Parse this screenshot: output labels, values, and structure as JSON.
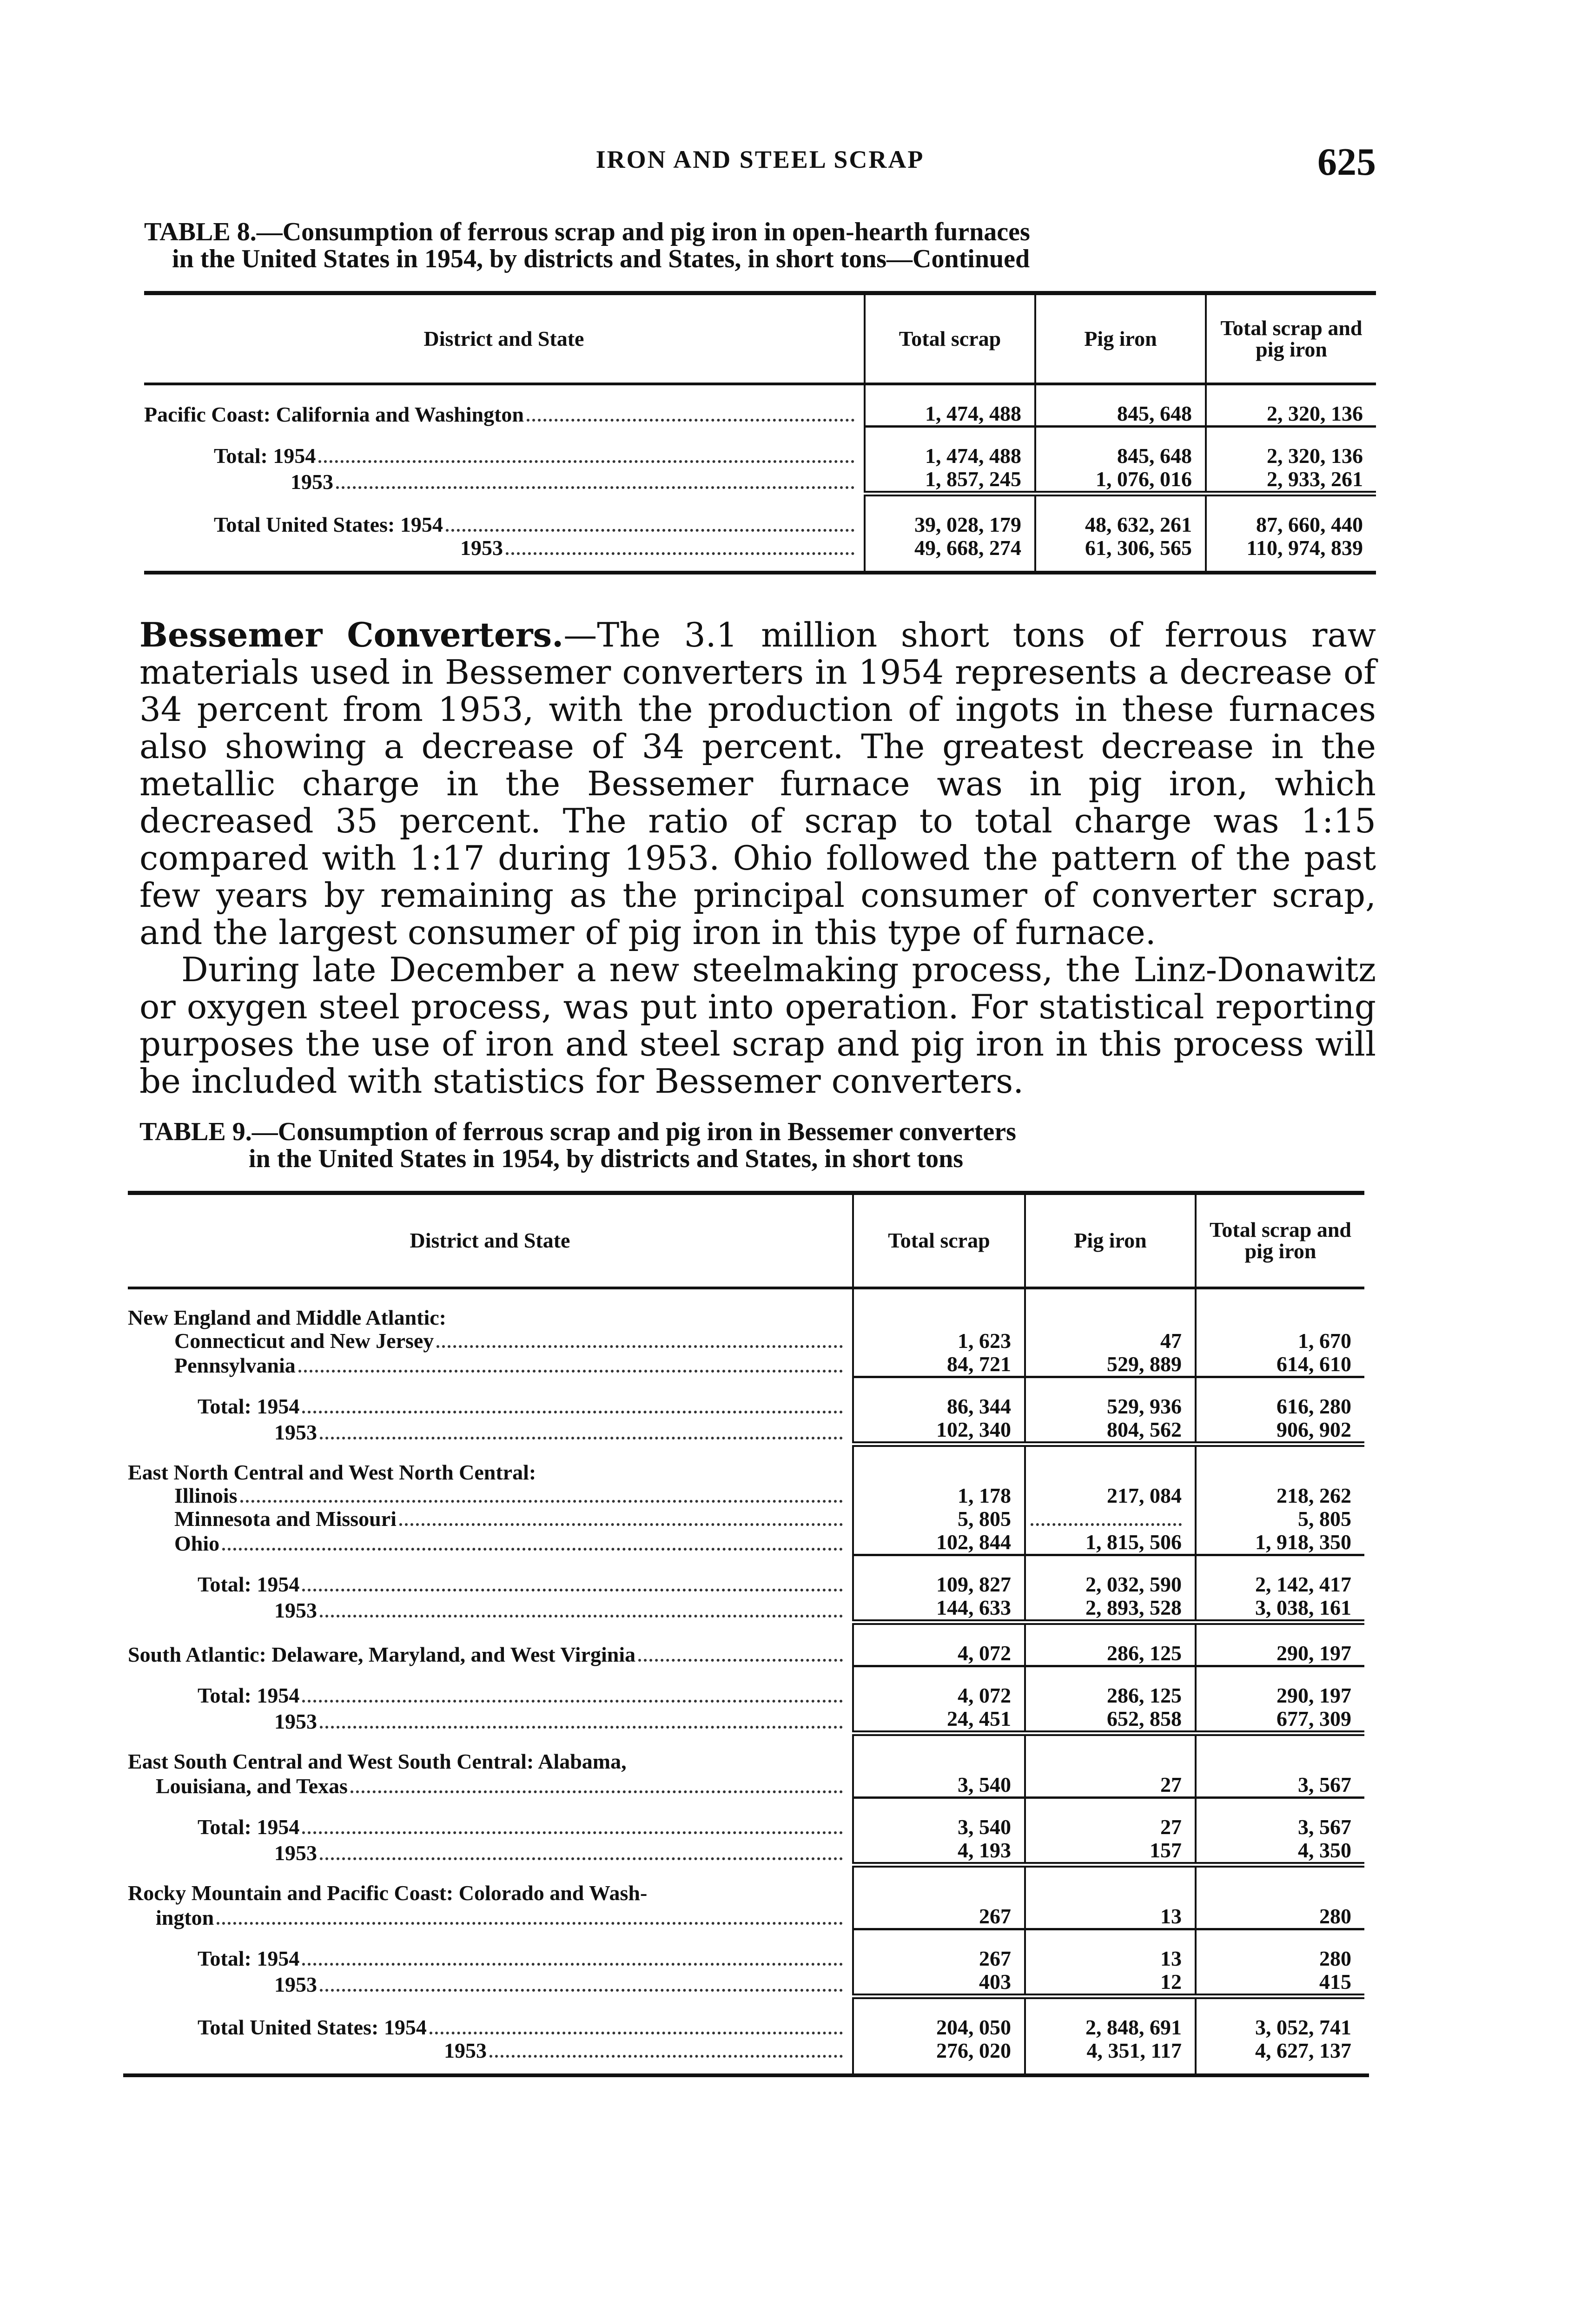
{
  "header": {
    "running_title": "IRON AND STEEL SCRAP",
    "page_number": "625"
  },
  "columns": [
    "District and State",
    "Total scrap",
    "Pig iron",
    "Total scrap and pig iron"
  ],
  "table8": {
    "title_line1": "TABLE 8.—Consumption of ferrous scrap and pig iron in open-hearth furnaces",
    "title_line2": "in the United States in 1954, by districts and States, in short tons—Continued",
    "rows": [
      {
        "label": "Pacific Coast: California and Washington",
        "indent": 0,
        "values": [
          "1, 474, 488",
          "845, 648",
          "2, 320, 136"
        ],
        "style": "gapTop"
      },
      {
        "label": "Total: 1954",
        "indent": 1,
        "values": [
          "1, 474, 488",
          "845, 648",
          "2, 320, 136"
        ],
        "style": "single"
      },
      {
        "label": "1953",
        "indent": 2,
        "values": [
          "1, 857, 245",
          "1, 076, 016",
          "2, 933, 261"
        ]
      },
      {
        "label": "Total United States: 1954",
        "indent": 1,
        "values": [
          "39, 028, 179",
          "48, 632, 261",
          "87, 660, 440"
        ],
        "style": "double"
      },
      {
        "label": "1953",
        "indent": 3,
        "values": [
          "49, 668, 274",
          "61, 306, 565",
          "110, 974, 839"
        ],
        "style": "last"
      }
    ]
  },
  "paragraph": {
    "lead_in": "Bessemer Converters.",
    "p1": "—The 3.1 million short tons of ferrous raw materials used in Bessemer converters in 1954 represents a decrease of 34 percent from 1953, with the production of ingots in these furnaces also showing a decrease of 34 percent. The greatest decrease in the metallic charge in the Bessemer furnace was in pig iron, which decreased 35 percent. The ratio of scrap to total charge was 1:15 compared with 1:17 during 1953. Ohio followed the pattern of the past few years by remaining as the principal consumer of converter scrap, and the largest consumer of pig iron in this type of furnace.",
    "p2": "During late December a new steelmaking process, the Linz-Donawitz or oxygen steel process, was put into operation. For statistical reporting purposes the use of iron and steel scrap and pig iron in this process will be included with statistics for Bessemer converters."
  },
  "table9": {
    "title_line1": "TABLE 9.—Consumption of ferrous scrap and pig iron in Bessemer converters",
    "title_line2": "in the United States in 1954, by districts and States, in short tons",
    "rows": [
      {
        "label": "New England and Middle Atlantic:",
        "indent": 0,
        "values": null,
        "style": "gapTop"
      },
      {
        "label": "Connecticut and New Jersey",
        "indent": 4,
        "values": [
          "1, 623",
          "47",
          "1, 670"
        ]
      },
      {
        "label": "Pennsylvania",
        "indent": 4,
        "values": [
          "84, 721",
          "529, 889",
          "614, 610"
        ]
      },
      {
        "label": "Total: 1954",
        "indent": 1,
        "values": [
          "86, 344",
          "529, 936",
          "616, 280"
        ],
        "style": "single"
      },
      {
        "label": "1953",
        "indent": 2,
        "values": [
          "102, 340",
          "804, 562",
          "906, 902"
        ]
      },
      {
        "label": "East North Central and West North Central:",
        "indent": 0,
        "values": null,
        "style": "double"
      },
      {
        "label": "Illinois",
        "indent": 4,
        "values": [
          "1, 178",
          "217, 084",
          "218, 262"
        ]
      },
      {
        "label": "Minnesota and Missouri",
        "indent": 4,
        "values": [
          "5, 805",
          "",
          "5, 805"
        ]
      },
      {
        "label": "Ohio",
        "indent": 4,
        "values": [
          "102, 844",
          "1, 815, 506",
          "1, 918, 350"
        ]
      },
      {
        "label": "Total: 1954",
        "indent": 1,
        "values": [
          "109, 827",
          "2, 032, 590",
          "2, 142, 417"
        ],
        "style": "single"
      },
      {
        "label": "1953",
        "indent": 2,
        "values": [
          "144, 633",
          "2, 893, 528",
          "3, 038, 161"
        ]
      },
      {
        "label": "South Atlantic: Delaware, Maryland, and West Virginia",
        "indent": 0,
        "values": [
          "4, 072",
          "286, 125",
          "290, 197"
        ],
        "style": "double"
      },
      {
        "label": "Total: 1954",
        "indent": 1,
        "values": [
          "4, 072",
          "286, 125",
          "290, 197"
        ],
        "style": "single"
      },
      {
        "label": "1953",
        "indent": 2,
        "values": [
          "24, 451",
          "652, 858",
          "677, 309"
        ]
      },
      {
        "label": "East South Central and West South Central: Alabama,",
        "indent": 0,
        "values": null,
        "style": "double"
      },
      {
        "label": "Louisiana, and Texas",
        "indent": 5,
        "values": [
          "3, 540",
          "27",
          "3, 567"
        ]
      },
      {
        "label": "Total: 1954",
        "indent": 1,
        "values": [
          "3, 540",
          "27",
          "3, 567"
        ],
        "style": "single"
      },
      {
        "label": "1953",
        "indent": 2,
        "values": [
          "4, 193",
          "157",
          "4, 350"
        ]
      },
      {
        "label": "Rocky Mountain and Pacific Coast: Colorado and Wash-",
        "indent": 0,
        "values": null,
        "style": "double"
      },
      {
        "label": "ington",
        "indent": 5,
        "values": [
          "267",
          "13",
          "280"
        ]
      },
      {
        "label": "Total: 1954",
        "indent": 1,
        "values": [
          "267",
          "13",
          "280"
        ],
        "style": "single"
      },
      {
        "label": "1953",
        "indent": 2,
        "values": [
          "403",
          "12",
          "415"
        ]
      },
      {
        "label": "Total United States: 1954",
        "indent": 1,
        "values": [
          "204, 050",
          "2, 848, 691",
          "3, 052, 741"
        ],
        "style": "double"
      },
      {
        "label": "1953",
        "indent": 3,
        "values": [
          "276, 020",
          "4, 351, 117",
          "4, 627, 137"
        ],
        "style": "last"
      }
    ]
  }
}
